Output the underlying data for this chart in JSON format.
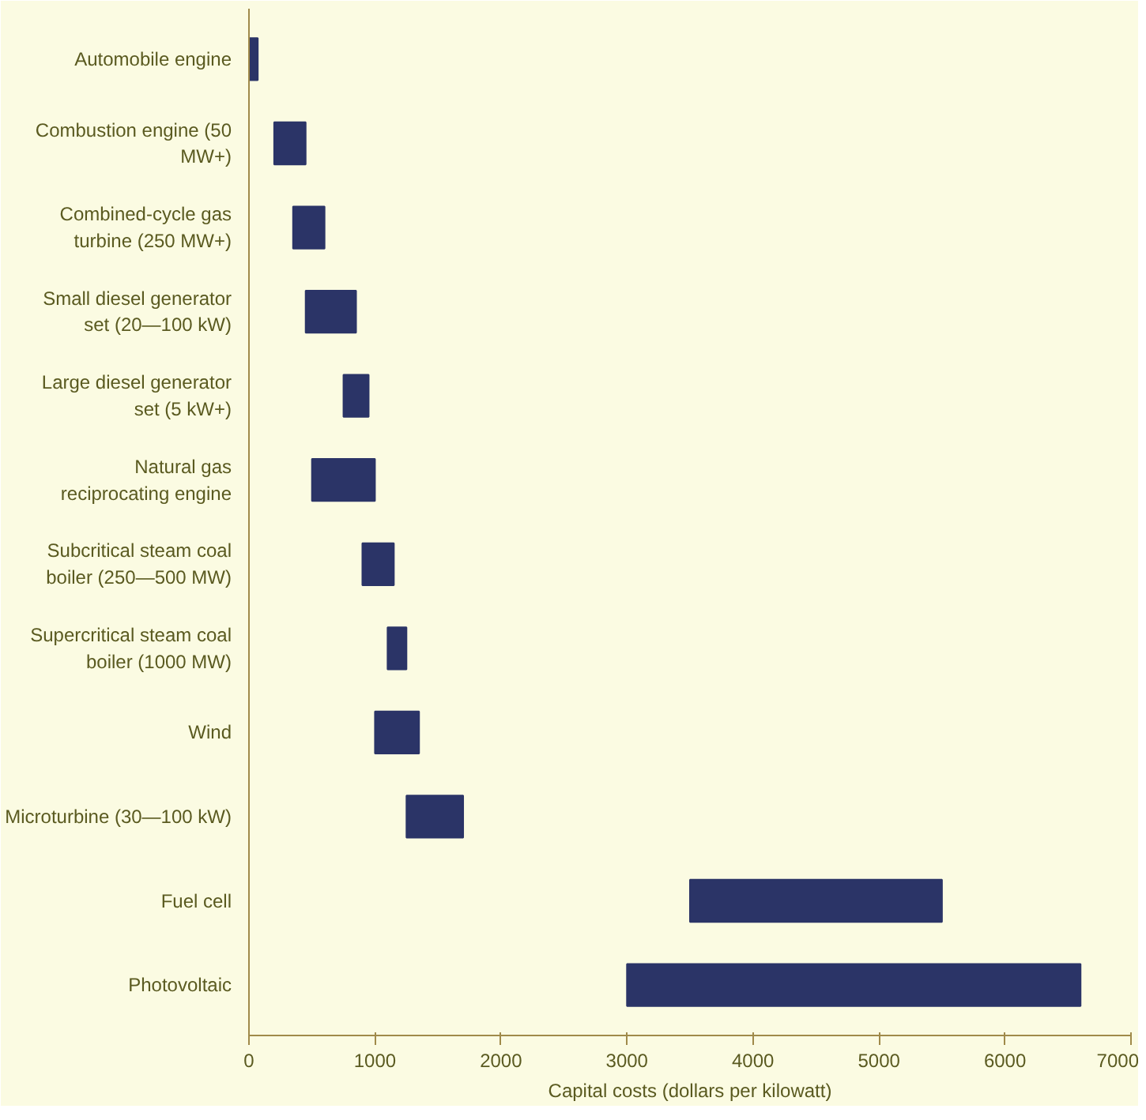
{
  "chart_data": {
    "type": "bar",
    "orientation": "horizontal",
    "xlabel": "Capital costs (dollars per kilowatt)",
    "categories": [
      "Automobile engine",
      "Combustion engine (50 MW+)",
      "Combined-cycle gas turbine (250 MW+)",
      "Small diesel generator set (20—100 kW)",
      "Large diesel generator set (5 kW+)",
      "Natural gas reciprocating engine",
      "Subcritical steam coal boiler (250—500 MW)",
      "Supercritical steam coal boiler (1000 MW)",
      "Wind",
      "Microturbine (30—100 kW)",
      "Fuel cell",
      "Photovoltaic"
    ],
    "base": [
      0,
      200,
      350,
      450,
      750,
      500,
      900,
      1100,
      1000,
      1250,
      3500,
      3000
    ],
    "values": [
      70,
      250,
      250,
      400,
      200,
      500,
      250,
      150,
      350,
      450,
      2000,
      3600
    ],
    "color": "#2b3467",
    "xlim": [
      0,
      7000
    ],
    "xticks": [
      0,
      1000,
      2000,
      3000,
      4000,
      5000,
      6000,
      7000
    ],
    "grid": false
  }
}
